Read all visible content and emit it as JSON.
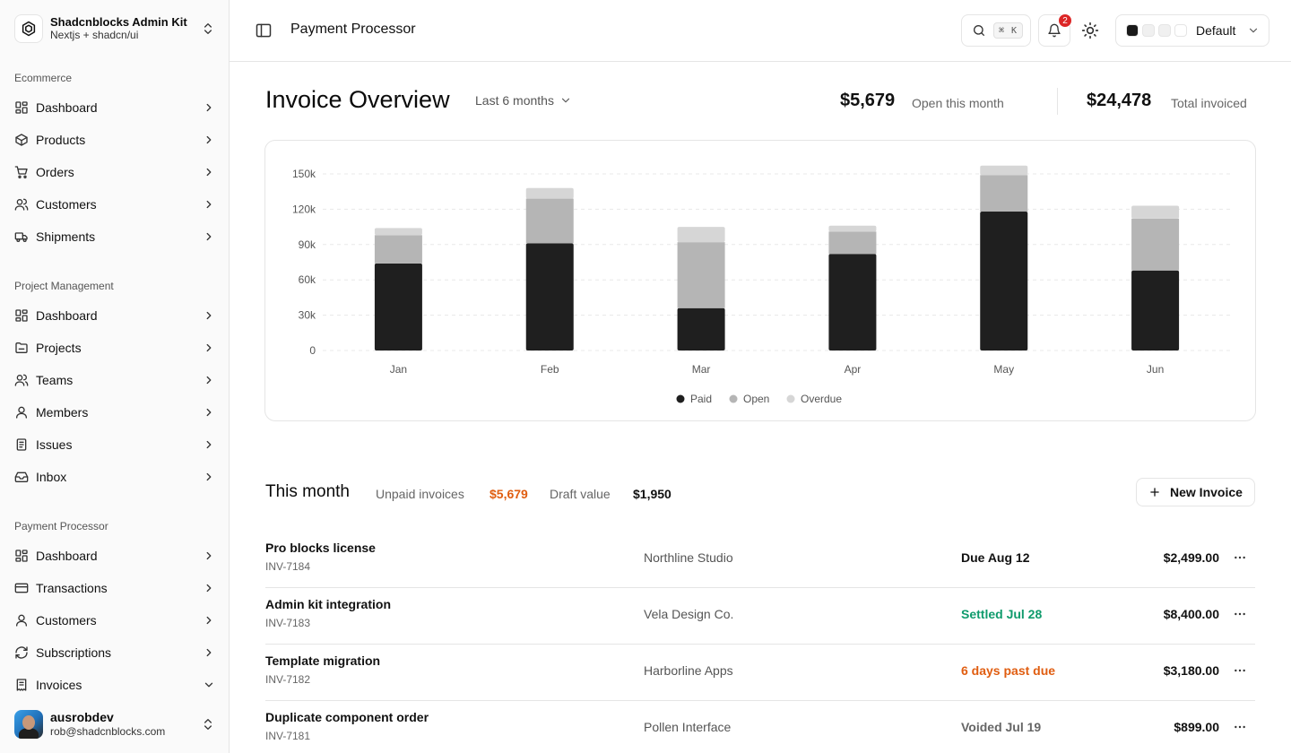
{
  "sidebar": {
    "team": {
      "name": "Shadcnblocks Admin Kit",
      "subtitle": "Nextjs + shadcn/ui"
    },
    "groups": [
      {
        "label": "Ecommerce",
        "items": [
          {
            "label": "Dashboard",
            "icon": "dashboard-icon"
          },
          {
            "label": "Products",
            "icon": "box-icon"
          },
          {
            "label": "Orders",
            "icon": "cart-icon"
          },
          {
            "label": "Customers",
            "icon": "users-icon"
          },
          {
            "label": "Shipments",
            "icon": "truck-icon"
          }
        ]
      },
      {
        "label": "Project Management",
        "items": [
          {
            "label": "Dashboard",
            "icon": "dashboard-icon"
          },
          {
            "label": "Projects",
            "icon": "folder-icon"
          },
          {
            "label": "Teams",
            "icon": "users-icon"
          },
          {
            "label": "Members",
            "icon": "user-icon"
          },
          {
            "label": "Issues",
            "icon": "clipboard-icon"
          },
          {
            "label": "Inbox",
            "icon": "inbox-icon"
          }
        ]
      },
      {
        "label": "Payment Processor",
        "items": [
          {
            "label": "Dashboard",
            "icon": "dashboard-icon"
          },
          {
            "label": "Transactions",
            "icon": "credit-card-icon"
          },
          {
            "label": "Customers",
            "icon": "user-icon"
          },
          {
            "label": "Subscriptions",
            "icon": "refresh-icon"
          },
          {
            "label": "Invoices",
            "icon": "receipt-icon",
            "expanded": true
          }
        ]
      }
    ],
    "user": {
      "name": "ausrobdev",
      "email": "rob@shadcnblocks.com"
    }
  },
  "header": {
    "title": "Payment Processor",
    "search_shortcut": "⌘ K",
    "notification_count": "2",
    "theme_label": "Default",
    "theme_swatches": [
      "#1a1a1a",
      "#f0f0f0",
      "#f0f0f0",
      "#ffffff"
    ]
  },
  "overview": {
    "title": "Invoice Overview",
    "range": "Last 6 months",
    "open_value": "$5,679",
    "open_label": "Open this month",
    "total_value": "$24,478",
    "total_label": "Total invoiced"
  },
  "chart_data": {
    "type": "bar",
    "stacked": true,
    "categories": [
      "Jan",
      "Feb",
      "Mar",
      "Apr",
      "May",
      "Jun"
    ],
    "series": [
      {
        "name": "Paid",
        "color": "#1f1f1f",
        "values": [
          74000,
          91000,
          36000,
          82000,
          118000,
          68000
        ]
      },
      {
        "name": "Open",
        "color": "#b5b5b5",
        "values": [
          24000,
          38000,
          56000,
          19000,
          31000,
          44000
        ]
      },
      {
        "name": "Overdue",
        "color": "#d6d6d6",
        "values": [
          6000,
          9000,
          13000,
          5000,
          8000,
          11000
        ]
      }
    ],
    "y_ticks": [
      "0",
      "30k",
      "60k",
      "90k",
      "120k",
      "150k"
    ],
    "ylim": [
      0,
      150000
    ],
    "grid": true,
    "legend": "bottom-center"
  },
  "this_month": {
    "title": "This month",
    "unpaid_label": "Unpaid invoices",
    "unpaid_value": "$5,679",
    "draft_label": "Draft value",
    "draft_value": "$1,950",
    "new_button": "New Invoice",
    "accent_color": "#e05d10",
    "settled_color": "#0f9b6c"
  },
  "invoices": [
    {
      "name": "Pro blocks license",
      "id": "INV-7184",
      "client": "Northline Studio",
      "status": "Due Aug 12",
      "status_color": "#111111",
      "amount": "$2,499.00"
    },
    {
      "name": "Admin kit integration",
      "id": "INV-7183",
      "client": "Vela Design Co.",
      "status": "Settled Jul 28",
      "status_color": "#0f9b6c",
      "amount": "$8,400.00"
    },
    {
      "name": "Template migration",
      "id": "INV-7182",
      "client": "Harborline Apps",
      "status": "6 days past due",
      "status_color": "#e05d10",
      "amount": "$3,180.00"
    },
    {
      "name": "Duplicate component order",
      "id": "INV-7181",
      "client": "Pollen Interface",
      "status": "Voided Jul 19",
      "status_color": "#666666",
      "amount": "$899.00"
    }
  ]
}
